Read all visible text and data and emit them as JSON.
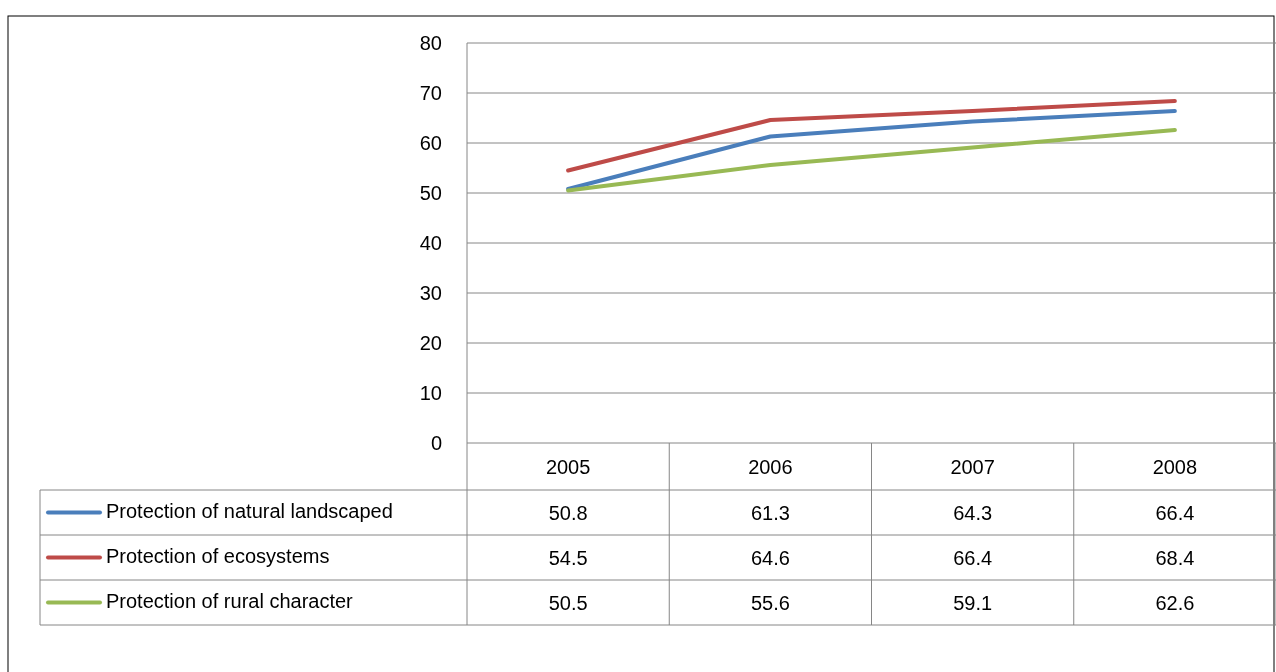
{
  "chart_data": {
    "type": "line",
    "categories": [
      "2005",
      "2006",
      "2007",
      "2008"
    ],
    "series": [
      {
        "name": "Protection of natural landscaped",
        "color": "#4a7ebb",
        "values": [
          50.8,
          61.3,
          64.3,
          66.4
        ]
      },
      {
        "name": "Protection of ecosystems",
        "color": "#be4b48",
        "values": [
          54.5,
          64.6,
          66.4,
          68.4
        ]
      },
      {
        "name": "Protection of rural character",
        "color": "#98b954",
        "values": [
          50.5,
          55.6,
          59.1,
          62.6
        ]
      }
    ],
    "ylim": [
      0,
      80
    ],
    "yticks": [
      0,
      10,
      20,
      30,
      40,
      50,
      60,
      70,
      80
    ],
    "grid": "y",
    "legend": "bottom",
    "data_labels": true,
    "marker": "none",
    "line_style": "solid"
  }
}
